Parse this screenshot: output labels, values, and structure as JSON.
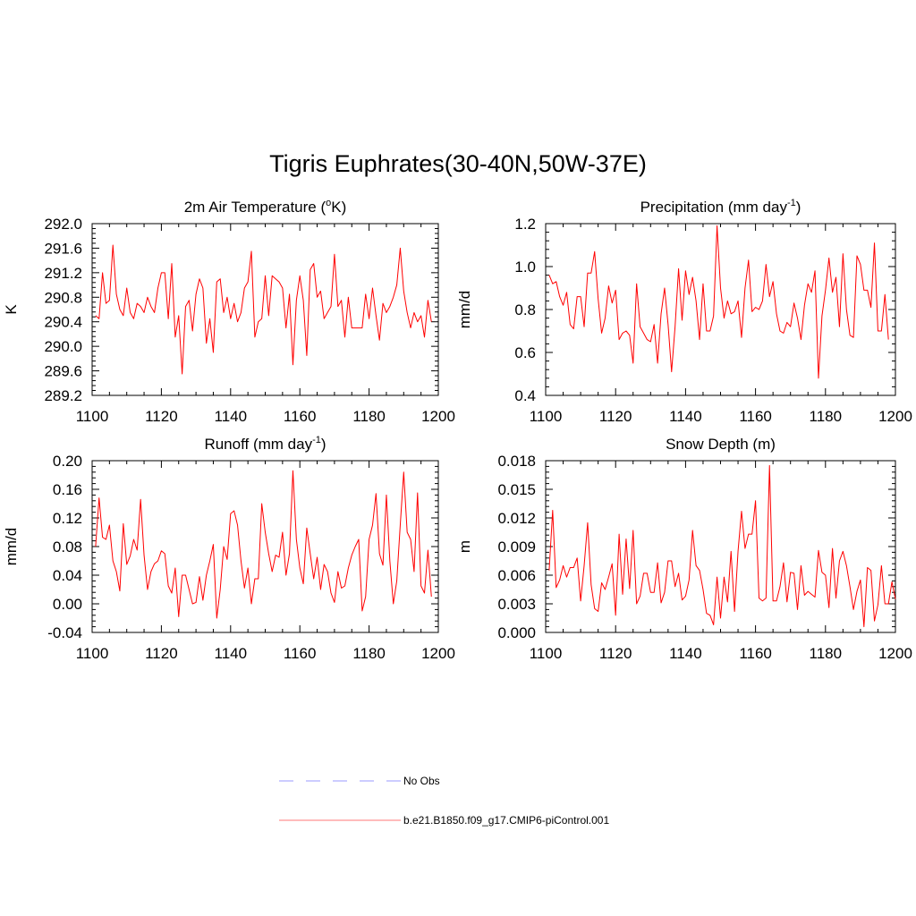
{
  "title": "Tigris Euphrates(30-40N,50W-37E)",
  "colors": {
    "model": "#ff0000",
    "obs": "#9999ff",
    "axis": "#000000"
  },
  "legend": [
    {
      "label": "No Obs",
      "style": "dashed",
      "color": "#9999ff"
    },
    {
      "label": "b.e21.B1850.f09_g17.CMIP6-piControl.001",
      "style": "solid",
      "color": "#ff7777"
    }
  ],
  "chart_data": [
    {
      "type": "line",
      "title_main": "2m Air Temperature (",
      "title_sup": "o",
      "title_end": "K)",
      "ylabel": "K",
      "xlim": [
        1100,
        1200
      ],
      "ylim": [
        289.2,
        292.0
      ],
      "xticks": [
        1100,
        1120,
        1140,
        1160,
        1180,
        1200
      ],
      "yticks": [
        289.2,
        289.6,
        290.0,
        290.4,
        290.8,
        291.2,
        291.6,
        292.0
      ],
      "yticklabels": [
        "289.2",
        "289.6",
        "290.0",
        "290.4",
        "290.8",
        "291.2",
        "291.6",
        "292.0"
      ],
      "series": [
        {
          "x_start": 1101,
          "values": [
            290.5,
            290.45,
            291.2,
            290.7,
            290.75,
            291.65,
            290.85,
            290.6,
            290.5,
            290.95,
            290.55,
            290.45,
            290.7,
            290.65,
            290.55,
            290.8,
            290.65,
            290.55,
            290.95,
            291.2,
            291.2,
            290.45,
            291.35,
            290.15,
            290.5,
            289.55,
            290.65,
            290.75,
            290.25,
            290.85,
            291.1,
            290.95,
            290.05,
            290.45,
            289.9,
            291.05,
            291.1,
            290.55,
            290.8,
            290.45,
            290.7,
            290.4,
            290.55,
            290.95,
            291.05,
            291.55,
            290.15,
            290.4,
            290.45,
            291.15,
            290.5,
            291.15,
            291.1,
            291.05,
            290.95,
            290.3,
            290.85,
            289.7,
            290.75,
            291.15,
            290.75,
            289.85,
            291.25,
            291.35,
            290.8,
            290.9,
            290.45,
            290.55,
            290.65,
            291.5,
            290.65,
            290.75,
            290.15,
            290.8,
            290.3,
            290.3,
            290.3,
            290.3,
            290.85,
            290.45,
            290.95,
            290.5,
            290.1,
            290.7,
            290.55,
            290.65,
            290.8,
            291.0,
            291.6,
            290.9,
            290.55,
            290.3,
            290.55,
            290.4,
            290.5,
            290.15,
            290.75,
            290.4
          ]
        }
      ]
    },
    {
      "type": "line",
      "title_main": "Precipitation (mm day",
      "title_sup": "-1",
      "title_end": ")",
      "ylabel": "mm/d",
      "xlim": [
        1100,
        1200
      ],
      "ylim": [
        0.4,
        1.2
      ],
      "xticks": [
        1100,
        1120,
        1140,
        1160,
        1180,
        1200
      ],
      "yticks": [
        0.4,
        0.6,
        0.8,
        1.0,
        1.2
      ],
      "yticklabels": [
        "0.4",
        "0.6",
        "0.8",
        "1.0",
        "1.2"
      ],
      "series": [
        {
          "x_start": 1101,
          "values": [
            0.96,
            0.92,
            0.93,
            0.86,
            0.82,
            0.88,
            0.73,
            0.71,
            0.86,
            0.86,
            0.72,
            0.97,
            0.97,
            1.07,
            0.85,
            0.69,
            0.76,
            0.91,
            0.83,
            0.89,
            0.66,
            0.69,
            0.7,
            0.68,
            0.55,
            0.92,
            0.72,
            0.69,
            0.66,
            0.65,
            0.73,
            0.55,
            0.78,
            0.9,
            0.73,
            0.51,
            0.72,
            0.99,
            0.75,
            0.98,
            0.87,
            0.95,
            0.84,
            0.66,
            0.92,
            0.7,
            0.7,
            0.77,
            1.19,
            0.9,
            0.76,
            0.84,
            0.78,
            0.79,
            0.84,
            0.67,
            0.9,
            1.03,
            0.79,
            0.81,
            0.8,
            0.84,
            1.01,
            0.86,
            0.93,
            0.78,
            0.7,
            0.69,
            0.74,
            0.72,
            0.83,
            0.76,
            0.66,
            0.82,
            0.92,
            0.88,
            0.98,
            0.48,
            0.77,
            0.89,
            1.04,
            0.88,
            0.95,
            0.72,
            1.06,
            0.8,
            0.68,
            0.67,
            1.05,
            1.01,
            0.89,
            0.89,
            0.81,
            1.11,
            0.7,
            0.7,
            0.87,
            0.66
          ]
        }
      ]
    },
    {
      "type": "line",
      "title_main": "Runoff (mm day",
      "title_sup": "-1",
      "title_end": ")",
      "ylabel": "mm/d",
      "xlim": [
        1100,
        1200
      ],
      "ylim": [
        -0.04,
        0.2
      ],
      "xticks": [
        1100,
        1120,
        1140,
        1160,
        1180,
        1200
      ],
      "yticks": [
        -0.04,
        0.0,
        0.04,
        0.08,
        0.12,
        0.16,
        0.2
      ],
      "yticklabels": [
        "-0.04",
        "0.00",
        "0.04",
        "0.08",
        "0.12",
        "0.16",
        "0.20"
      ],
      "series": [
        {
          "x_start": 1101,
          "values": [
            0.08,
            0.148,
            0.093,
            0.09,
            0.11,
            0.06,
            0.045,
            0.018,
            0.112,
            0.055,
            0.067,
            0.09,
            0.075,
            0.146,
            0.068,
            0.02,
            0.045,
            0.056,
            0.06,
            0.074,
            0.07,
            0.025,
            0.015,
            0.05,
            -0.018,
            0.04,
            0.04,
            0.02,
            0.0,
            0.002,
            0.038,
            0.005,
            0.04,
            0.06,
            0.083,
            -0.02,
            0.02,
            0.08,
            0.062,
            0.126,
            0.13,
            0.11,
            0.06,
            0.022,
            0.05,
            0.0,
            0.035,
            0.035,
            0.14,
            0.1,
            0.07,
            0.045,
            0.068,
            0.065,
            0.1,
            0.04,
            0.07,
            0.186,
            0.09,
            0.05,
            0.028,
            0.106,
            0.07,
            0.035,
            0.065,
            0.02,
            0.055,
            0.045,
            0.015,
            0.002,
            0.045,
            0.022,
            0.025,
            0.05,
            0.068,
            0.08,
            0.09,
            -0.01,
            0.01,
            0.09,
            0.11,
            0.154,
            0.07,
            0.054,
            0.152,
            0.06,
            0.0,
            0.032,
            0.11,
            0.184,
            0.1,
            0.09,
            0.045,
            0.155,
            0.025,
            0.015,
            0.075,
            0.01
          ]
        }
      ]
    },
    {
      "type": "line",
      "title_main": "Snow Depth (m)",
      "title_sup": "",
      "title_end": "",
      "ylabel": "m",
      "xlim": [
        1100,
        1200
      ],
      "ylim": [
        0.0,
        0.018
      ],
      "xticks": [
        1100,
        1120,
        1140,
        1160,
        1180,
        1200
      ],
      "yticks": [
        0.0,
        0.003,
        0.006,
        0.009,
        0.012,
        0.015,
        0.018
      ],
      "yticklabels": [
        "0.000",
        "0.003",
        "0.006",
        "0.009",
        "0.012",
        "0.015",
        "0.018"
      ],
      "series": [
        {
          "x_start": 1101,
          "values": [
            0.0065,
            0.0128,
            0.0047,
            0.0055,
            0.007,
            0.0058,
            0.0068,
            0.0068,
            0.0078,
            0.0033,
            0.007,
            0.0115,
            0.005,
            0.0025,
            0.0022,
            0.0052,
            0.0045,
            0.0058,
            0.0072,
            0.0018,
            0.0103,
            0.004,
            0.0098,
            0.0046,
            0.0107,
            0.003,
            0.0038,
            0.0062,
            0.0062,
            0.0042,
            0.0042,
            0.0073,
            0.0031,
            0.0042,
            0.0075,
            0.0075,
            0.0048,
            0.0062,
            0.0034,
            0.0038,
            0.0055,
            0.0107,
            0.007,
            0.0065,
            0.0045,
            0.002,
            0.0018,
            0.0008,
            0.0058,
            0.0015,
            0.0058,
            0.0032,
            0.0085,
            0.0022,
            0.0085,
            0.0127,
            0.0088,
            0.0103,
            0.0103,
            0.0138,
            0.0036,
            0.0033,
            0.0036,
            0.0175,
            0.0033,
            0.0033,
            0.0048,
            0.0073,
            0.0032,
            0.0063,
            0.0062,
            0.0024,
            0.007,
            0.0039,
            0.0043,
            0.004,
            0.0037,
            0.0086,
            0.0063,
            0.006,
            0.0026,
            0.0088,
            0.0036,
            0.0075,
            0.0085,
            0.007,
            0.0048,
            0.0024,
            0.0043,
            0.0055,
            0.0006,
            0.0068,
            0.0065,
            0.0012,
            0.0029,
            0.007,
            0.003,
            0.003,
            0.0053,
            0.0035
          ]
        }
      ]
    }
  ]
}
